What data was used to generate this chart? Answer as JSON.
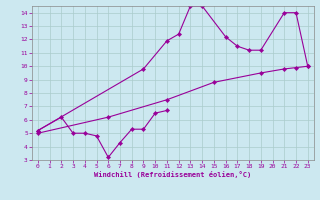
{
  "xlabel": "Windchill (Refroidissement éolien,°C)",
  "bg_color": "#cce8f0",
  "line_color": "#990099",
  "grid_color": "#aacccc",
  "xlim": [
    -0.5,
    23.5
  ],
  "ylim": [
    3,
    14.5
  ],
  "xticks": [
    0,
    1,
    2,
    3,
    4,
    5,
    6,
    7,
    8,
    9,
    10,
    11,
    12,
    13,
    14,
    15,
    16,
    17,
    18,
    19,
    20,
    21,
    22,
    23
  ],
  "yticks": [
    3,
    4,
    5,
    6,
    7,
    8,
    9,
    10,
    11,
    12,
    13,
    14
  ],
  "lines": [
    {
      "x": [
        0,
        2,
        3,
        4,
        5,
        6,
        7,
        8,
        9,
        10,
        11
      ],
      "y": [
        5.2,
        6.2,
        5.0,
        5.0,
        4.8,
        3.2,
        4.3,
        5.3,
        5.3,
        6.5,
        6.7
      ]
    },
    {
      "x": [
        0,
        9,
        11,
        12,
        13,
        14,
        16,
        17,
        18,
        19,
        21,
        22,
        23
      ],
      "y": [
        5.2,
        9.8,
        11.9,
        12.4,
        14.5,
        14.5,
        12.2,
        11.5,
        11.2,
        11.2,
        14.0,
        14.0,
        10.0
      ]
    },
    {
      "x": [
        0,
        6,
        11,
        15,
        19,
        21,
        22,
        23
      ],
      "y": [
        5.0,
        6.2,
        7.5,
        8.8,
        9.5,
        9.8,
        9.9,
        10.0
      ]
    }
  ]
}
